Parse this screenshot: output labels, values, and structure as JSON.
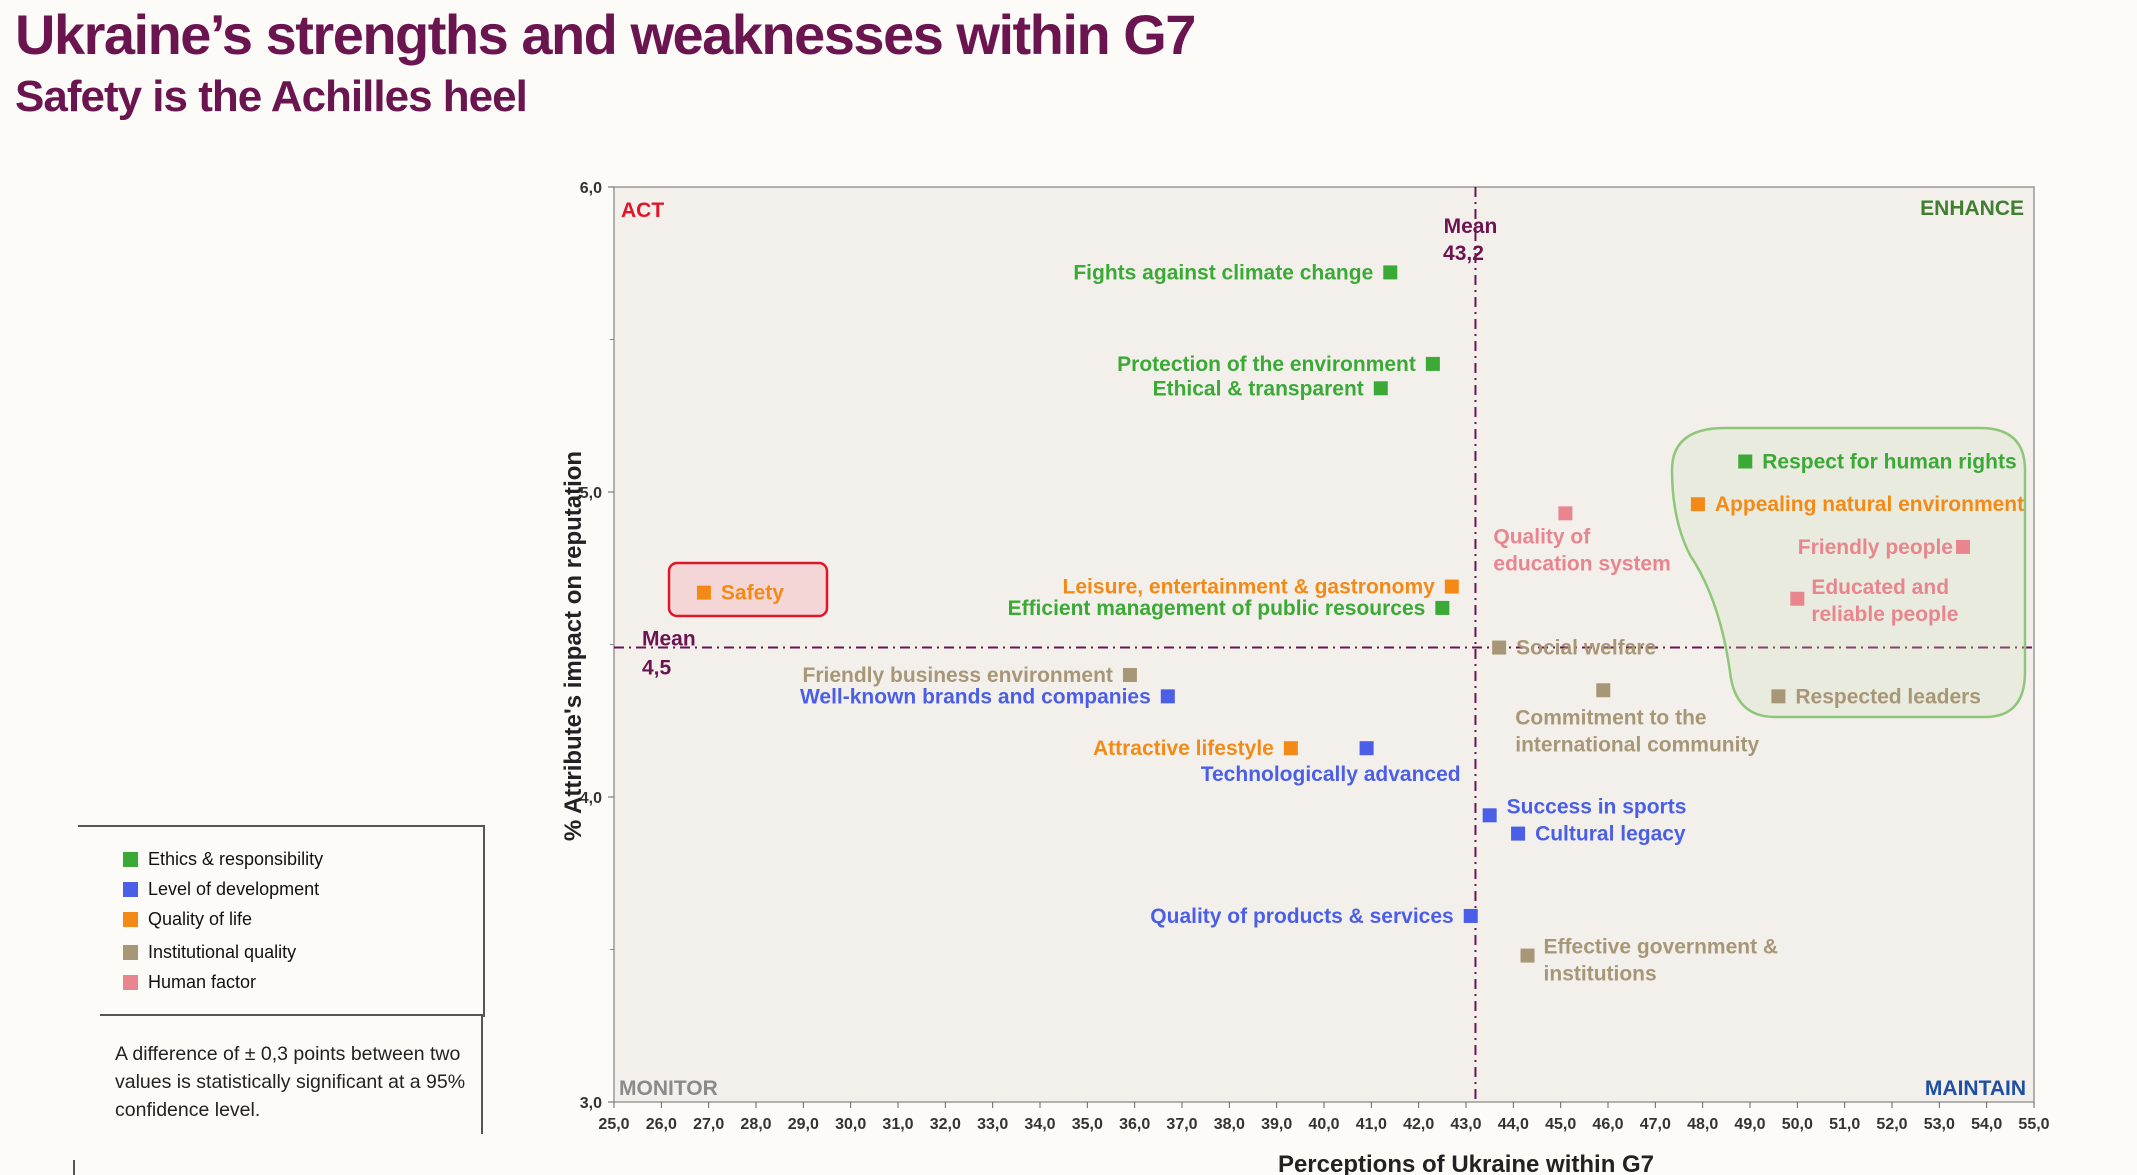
{
  "title": "Ukraine’s strengths and weaknesses within G7",
  "subtitle": "Safety is the Achilles heel",
  "colors": {
    "ethics": "#3aa935",
    "development": "#4a5ee8",
    "quality_of_life": "#f48a16",
    "institutional": "#a89777",
    "human": "#e8858e",
    "title": "#6b1550",
    "mean_line": "#6b1550",
    "plot_bg": "#f3f0ec",
    "act": "#e0162b",
    "enhance": "#3f7f2f",
    "monitor": "#8a8a8a",
    "maintain": "#1f4fa0"
  },
  "legend": {
    "items": [
      {
        "label": "Ethics & responsibility",
        "color": "#3aa935"
      },
      {
        "label": "Level of development",
        "color": "#4a5ee8"
      },
      {
        "label": "Quality of life",
        "color": "#f48a16"
      },
      {
        "label": "Institutional quality",
        "color": "#a89777"
      },
      {
        "label": "Human factor",
        "color": "#e8858e"
      }
    ]
  },
  "note": "A difference of ± 0,3 points between two values is statistically significant at a 95% confidence level.",
  "chart_data": {
    "type": "scatter",
    "xlabel": "Perceptions of Ukraine within G7",
    "ylabel": "% Attribute's impact on reputation",
    "xlim": [
      25,
      55
    ],
    "ylim": [
      3,
      6
    ],
    "x_ticks": [
      "25,0",
      "26,0",
      "27,0",
      "28,0",
      "29,0",
      "30,0",
      "31,0",
      "32,0",
      "33,0",
      "34,0",
      "35,0",
      "36,0",
      "37,0",
      "38,0",
      "39,0",
      "40,0",
      "41,0",
      "42,0",
      "43,0",
      "44,0",
      "45,0",
      "46,0",
      "47,0",
      "48,0",
      "49,0",
      "50,0",
      "51,0",
      "52,0",
      "53,0",
      "54,0",
      "55,0"
    ],
    "y_ticks": [
      {
        "value": 6,
        "label": "6,0"
      },
      {
        "value": 5,
        "label": "5,0"
      },
      {
        "value": 4,
        "label": "4,0"
      },
      {
        "value": 3,
        "label": "3,0"
      }
    ],
    "grid": false,
    "mean_x": {
      "value": 43.2,
      "label_line1": "Mean",
      "label_line2": "43,2"
    },
    "mean_y": {
      "value": 4.49,
      "label_line1": "Mean",
      "label_line2": "4,5"
    },
    "quadrants": {
      "top_left": "ACT",
      "top_right": "ENHANCE",
      "bottom_left": "MONITOR",
      "bottom_right": "MAINTAIN"
    },
    "series": [
      {
        "name": "Ethics & responsibility",
        "color": "#3aa935",
        "points": [
          {
            "x": 41.4,
            "y": 5.72,
            "label": [
              "Fights against climate change"
            ],
            "side": "left"
          },
          {
            "x": 42.3,
            "y": 5.42,
            "label": [
              "Protection of the environment"
            ],
            "side": "left"
          },
          {
            "x": 41.2,
            "y": 5.34,
            "label": [
              "Ethical & transparent"
            ],
            "side": "left"
          },
          {
            "x": 42.5,
            "y": 4.62,
            "label": [
              "Efficient management of public resources"
            ],
            "side": "left"
          },
          {
            "x": 48.9,
            "y": 5.1,
            "label": [
              "Respect for human rights"
            ],
            "side": "right"
          }
        ]
      },
      {
        "name": "Level of development",
        "color": "#4a5ee8",
        "points": [
          {
            "x": 36.7,
            "y": 4.33,
            "label": [
              "Well-known brands and companies"
            ],
            "side": "left"
          },
          {
            "x": 40.9,
            "y": 4.16,
            "label": [
              "Technologically advanced"
            ],
            "side": "below-left"
          },
          {
            "x": 43.5,
            "y": 3.94,
            "label": [
              "Success in sports"
            ],
            "side": "right-up"
          },
          {
            "x": 44.1,
            "y": 3.88,
            "label": [
              "Cultural legacy"
            ],
            "side": "right"
          },
          {
            "x": 43.1,
            "y": 3.61,
            "label": [
              "Quality of products & services"
            ],
            "side": "left"
          }
        ]
      },
      {
        "name": "Quality of life",
        "color": "#f48a16",
        "points": [
          {
            "x": 26.9,
            "y": 4.67,
            "label": [
              "Safety"
            ],
            "side": "right"
          },
          {
            "x": 42.7,
            "y": 4.69,
            "label": [
              "Leisure, entertainment & gastronomy"
            ],
            "side": "left"
          },
          {
            "x": 39.3,
            "y": 4.16,
            "label": [
              "Attractive lifestyle"
            ],
            "side": "left"
          },
          {
            "x": 47.9,
            "y": 4.96,
            "label": [
              "Appealing natural environment"
            ],
            "side": "right"
          }
        ]
      },
      {
        "name": "Institutional quality",
        "color": "#a89777",
        "points": [
          {
            "x": 35.9,
            "y": 4.4,
            "label": [
              "Friendly business environment"
            ],
            "side": "left"
          },
          {
            "x": 43.7,
            "y": 4.49,
            "label": [
              "Social welfare"
            ],
            "side": "right"
          },
          {
            "x": 45.9,
            "y": 4.35,
            "label": [
              "Commitment to the",
              "international community"
            ],
            "side": "below"
          },
          {
            "x": 49.6,
            "y": 4.33,
            "label": [
              "Respected leaders"
            ],
            "side": "right"
          },
          {
            "x": 44.3,
            "y": 3.48,
            "label": [
              "Effective government &",
              "institutions"
            ],
            "side": "right"
          }
        ]
      },
      {
        "name": "Human factor",
        "color": "#e8858e",
        "points": [
          {
            "x": 45.1,
            "y": 4.93,
            "label": [
              "Quality of",
              "education system"
            ],
            "side": "below"
          },
          {
            "x": 53.5,
            "y": 4.82,
            "label": [
              "Friendly people"
            ],
            "side": "left"
          },
          {
            "x": 50.0,
            "y": 4.65,
            "label": [
              "Educated and",
              "reliable people"
            ],
            "side": "right"
          }
        ]
      }
    ]
  }
}
